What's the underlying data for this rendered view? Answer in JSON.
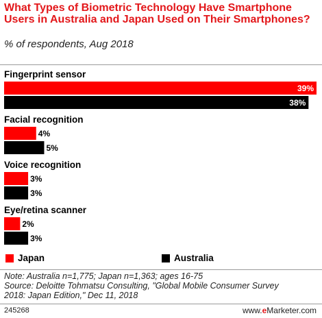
{
  "chart_data": {
    "type": "bar",
    "orientation": "horizontal",
    "title": "What Types of Biometric Technology Have Smartphone Users in Australia and Japan Used on Their Smartphones?",
    "subtitle": "% of respondents, Aug 2018",
    "categories": [
      "Fingerprint sensor",
      "Facial recognition",
      "Voice recognition",
      "Eye/retina scanner"
    ],
    "series": [
      {
        "name": "Japan",
        "color": "#ff0000",
        "values": [
          39,
          4,
          3,
          2
        ]
      },
      {
        "name": "Australia",
        "color": "#000000",
        "values": [
          38,
          5,
          3,
          3
        ]
      }
    ],
    "value_suffix": "%",
    "xlim": [
      0,
      39
    ],
    "grid": false,
    "legend_position": "bottom-left"
  },
  "legend": {
    "items": [
      "Japan",
      "Australia"
    ]
  },
  "note": {
    "line1": "Note: Australia n=1,775; Japan n=1,363; ages 16-75",
    "line2": "Source: Deloitte Tohmatsu Consulting, \"Global Mobile Consumer Survey",
    "line3": "2018: Japan Edition,\" Dec 11, 2018"
  },
  "footer": {
    "chart_id": "245268",
    "brand_prefix": "www.",
    "brand_e": "e",
    "brand_name": "Marketer",
    "brand_suffix": ".com"
  }
}
